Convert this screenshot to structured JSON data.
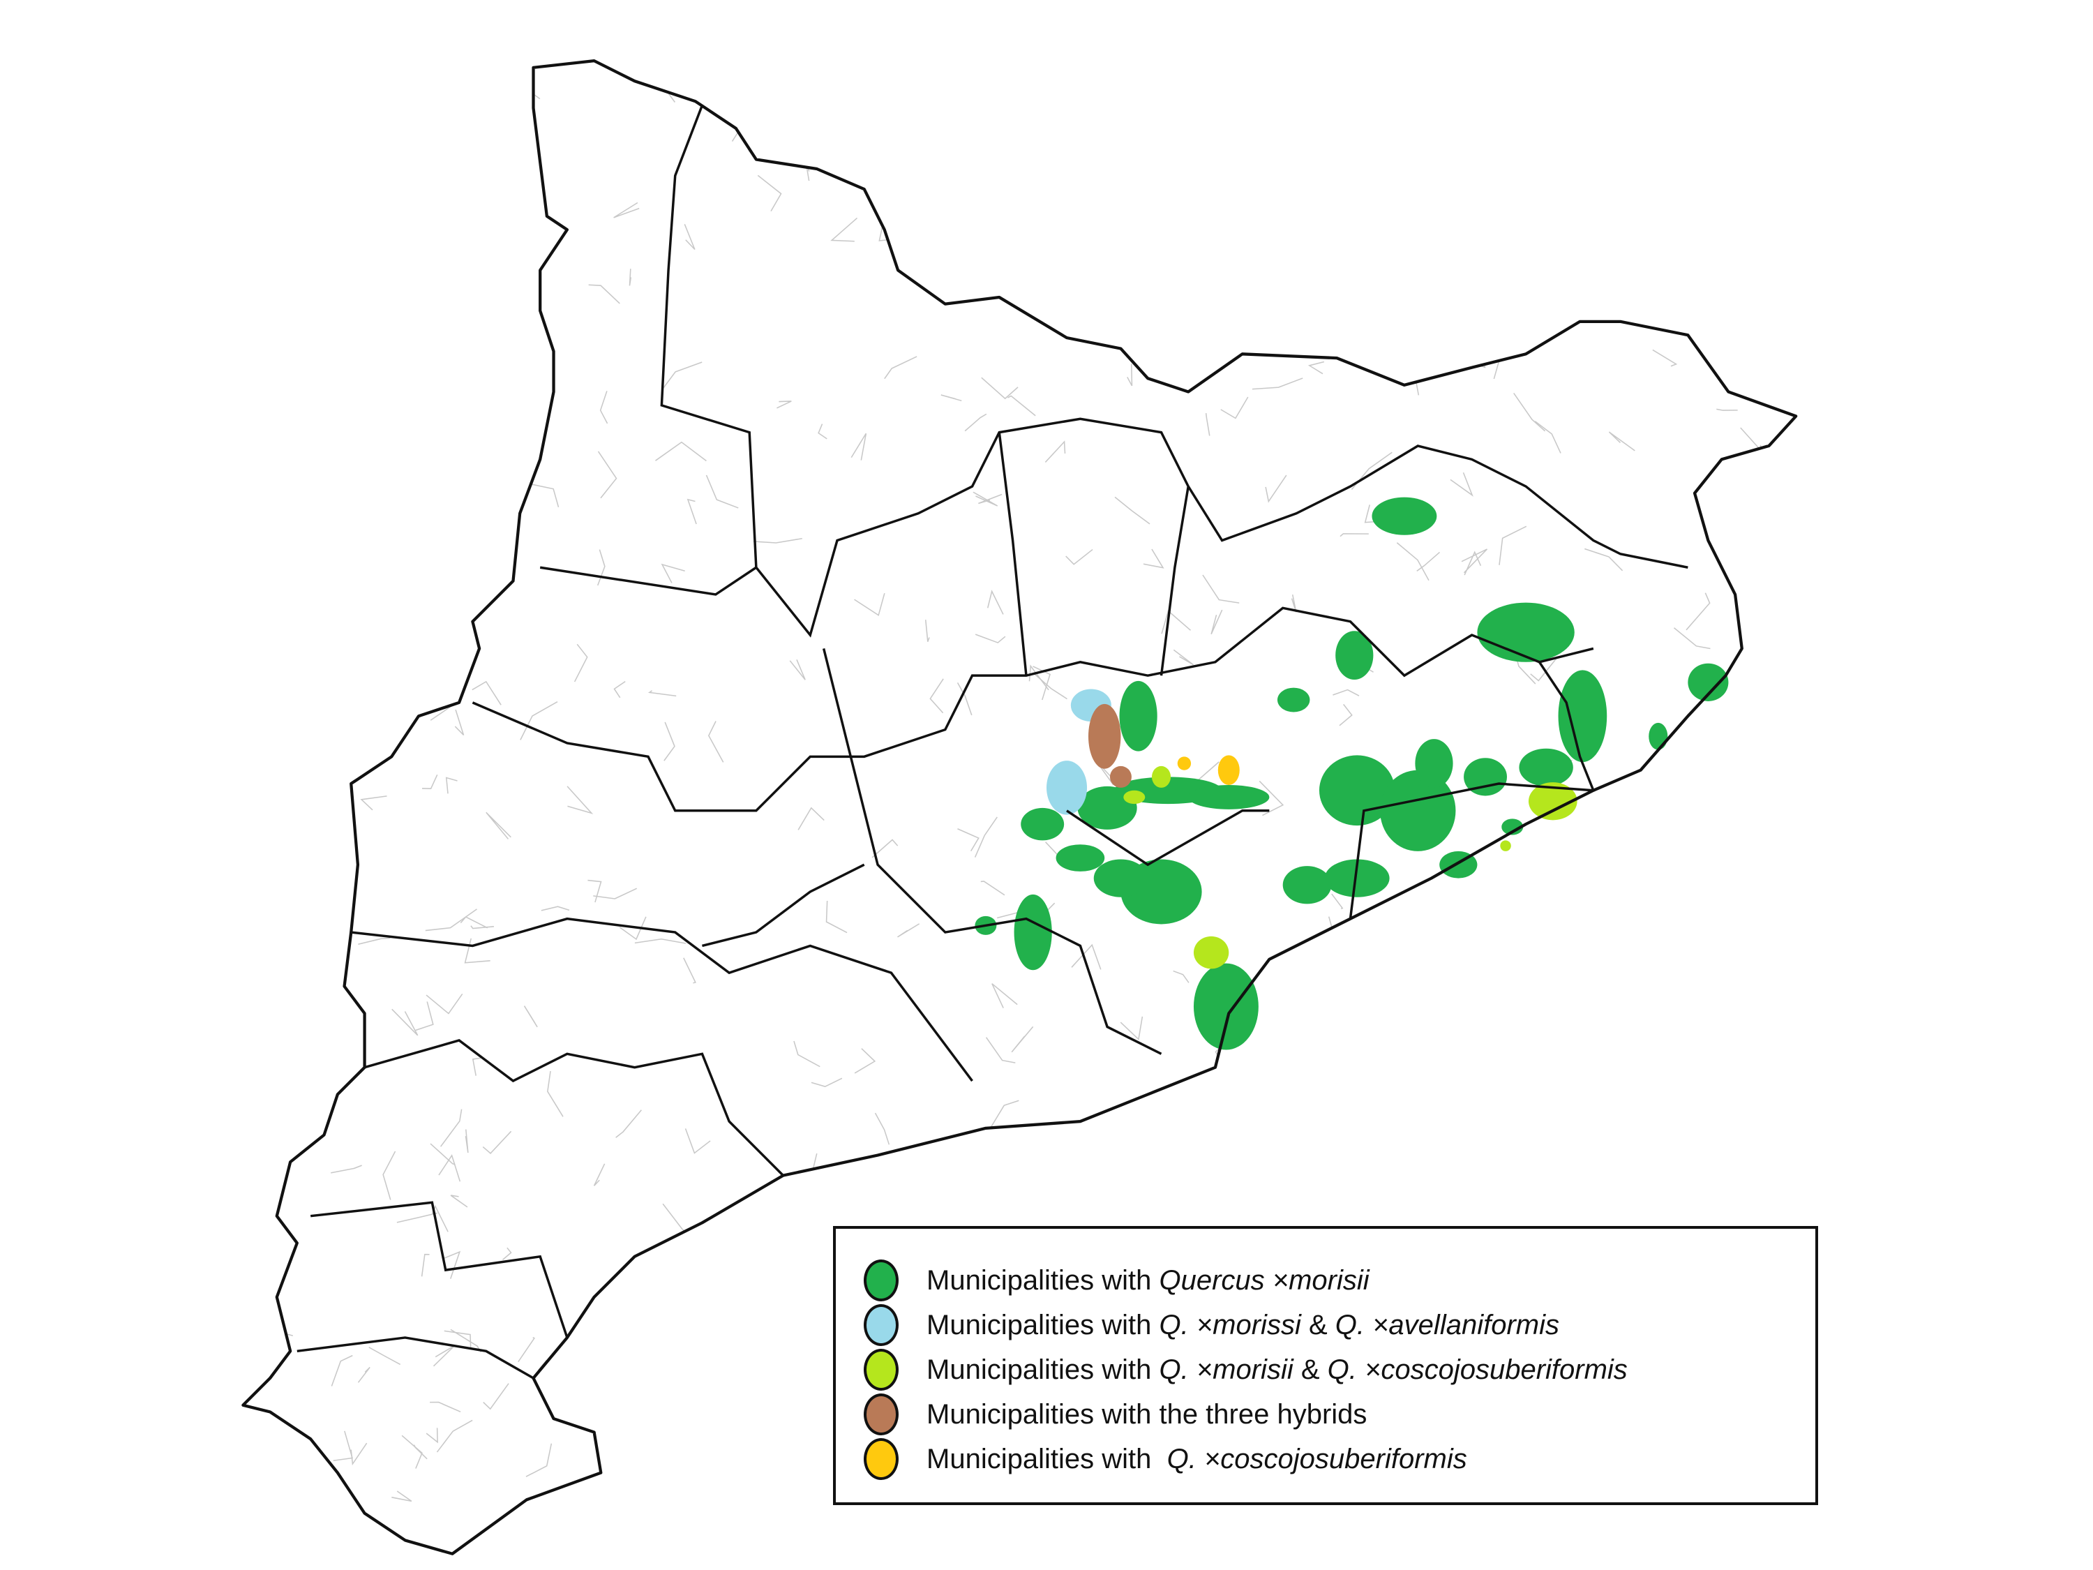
{
  "colors": {
    "morisii": "#22b14c",
    "morisii_avellaniformis": "#99d9ea",
    "morisii_coscojosuberiformis": "#b5e61d",
    "three_hybrids": "#b97a57",
    "coscojosuberiformis": "#ffc90e",
    "border": "#111111",
    "municipal_border": "#c8c8c8"
  },
  "legend": {
    "items": [
      {
        "key": "morisii",
        "parts": [
          "Municipalities with ",
          "Quercus ×morisii"
        ]
      },
      {
        "key": "morisii_avellaniformis",
        "parts": [
          "Municipalities with ",
          "Q. ×morissi",
          " & ",
          "Q. ×avellaniformis"
        ]
      },
      {
        "key": "morisii_coscojosuberiformis",
        "parts": [
          "Municipalities with ",
          "Q. ×morisii",
          " & ",
          "Q. ×coscojosuberiformis"
        ]
      },
      {
        "key": "three_hybrids",
        "parts": [
          "Municipalities with the three hybrids"
        ]
      },
      {
        "key": "coscojosuberiformis",
        "parts": [
          "Municipalities with  ",
          "Q. ×coscojosuberiformis"
        ]
      }
    ]
  }
}
